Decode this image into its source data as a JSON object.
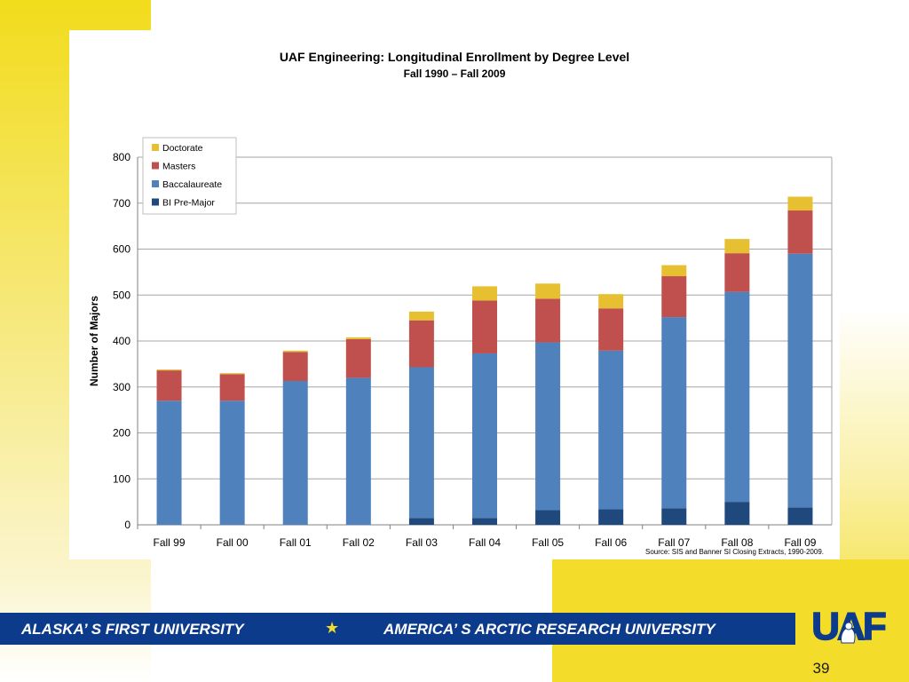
{
  "slide": {
    "title": "UAF Engineering: Longitudinal Enrollment by Degree Level",
    "subtitle": "Fall 1990 – Fall 2009",
    "source": "Source: SIS and Banner SI Closing Extracts, 1990-2009.",
    "page_number": "39"
  },
  "banner": {
    "left_text": "ALASKA’ S FIRST UNIVERSITY",
    "star": "★",
    "right_text": "AMERICA’ S ARCTIC RESEARCH UNIVERSITY"
  },
  "logo": {
    "text": "UAF",
    "icon": "uaf-nanook-logo-icon"
  },
  "colors": {
    "accent_yellow": "#f3dc2a",
    "banner_blue": "#0d3b8c"
  },
  "chart_data": {
    "type": "bar",
    "stacked": true,
    "title": "UAF Engineering: Longitudinal Enrollment by Degree Level",
    "subtitle": "Fall 1990 – Fall 2009",
    "xlabel": "",
    "ylabel": "Number of Majors",
    "ylim": [
      0,
      800
    ],
    "yticks": [
      0,
      100,
      200,
      300,
      400,
      500,
      600,
      700,
      800
    ],
    "grid": true,
    "legend_position": "top-left",
    "categories": [
      "Fall 99",
      "Fall 00",
      "Fall 01",
      "Fall 02",
      "Fall 03",
      "Fall 04",
      "Fall 05",
      "Fall 06",
      "Fall 07",
      "Fall 08",
      "Fall 09"
    ],
    "series": [
      {
        "name": "BI Pre-Major",
        "color": "#1f497d",
        "values": [
          0,
          0,
          0,
          0,
          15,
          15,
          32,
          34,
          36,
          50,
          38
        ]
      },
      {
        "name": "Baccalaureate",
        "color": "#4f81bd",
        "values": [
          270,
          270,
          313,
          320,
          328,
          358,
          365,
          345,
          416,
          457,
          552
        ]
      },
      {
        "name": "Masters",
        "color": "#c0504d",
        "values": [
          66,
          58,
          63,
          84,
          102,
          115,
          95,
          92,
          89,
          84,
          94
        ]
      },
      {
        "name": "Doctorate",
        "color": "#e6c030",
        "values": [
          2,
          2,
          3,
          4,
          19,
          31,
          33,
          31,
          24,
          31,
          30
        ]
      }
    ]
  }
}
